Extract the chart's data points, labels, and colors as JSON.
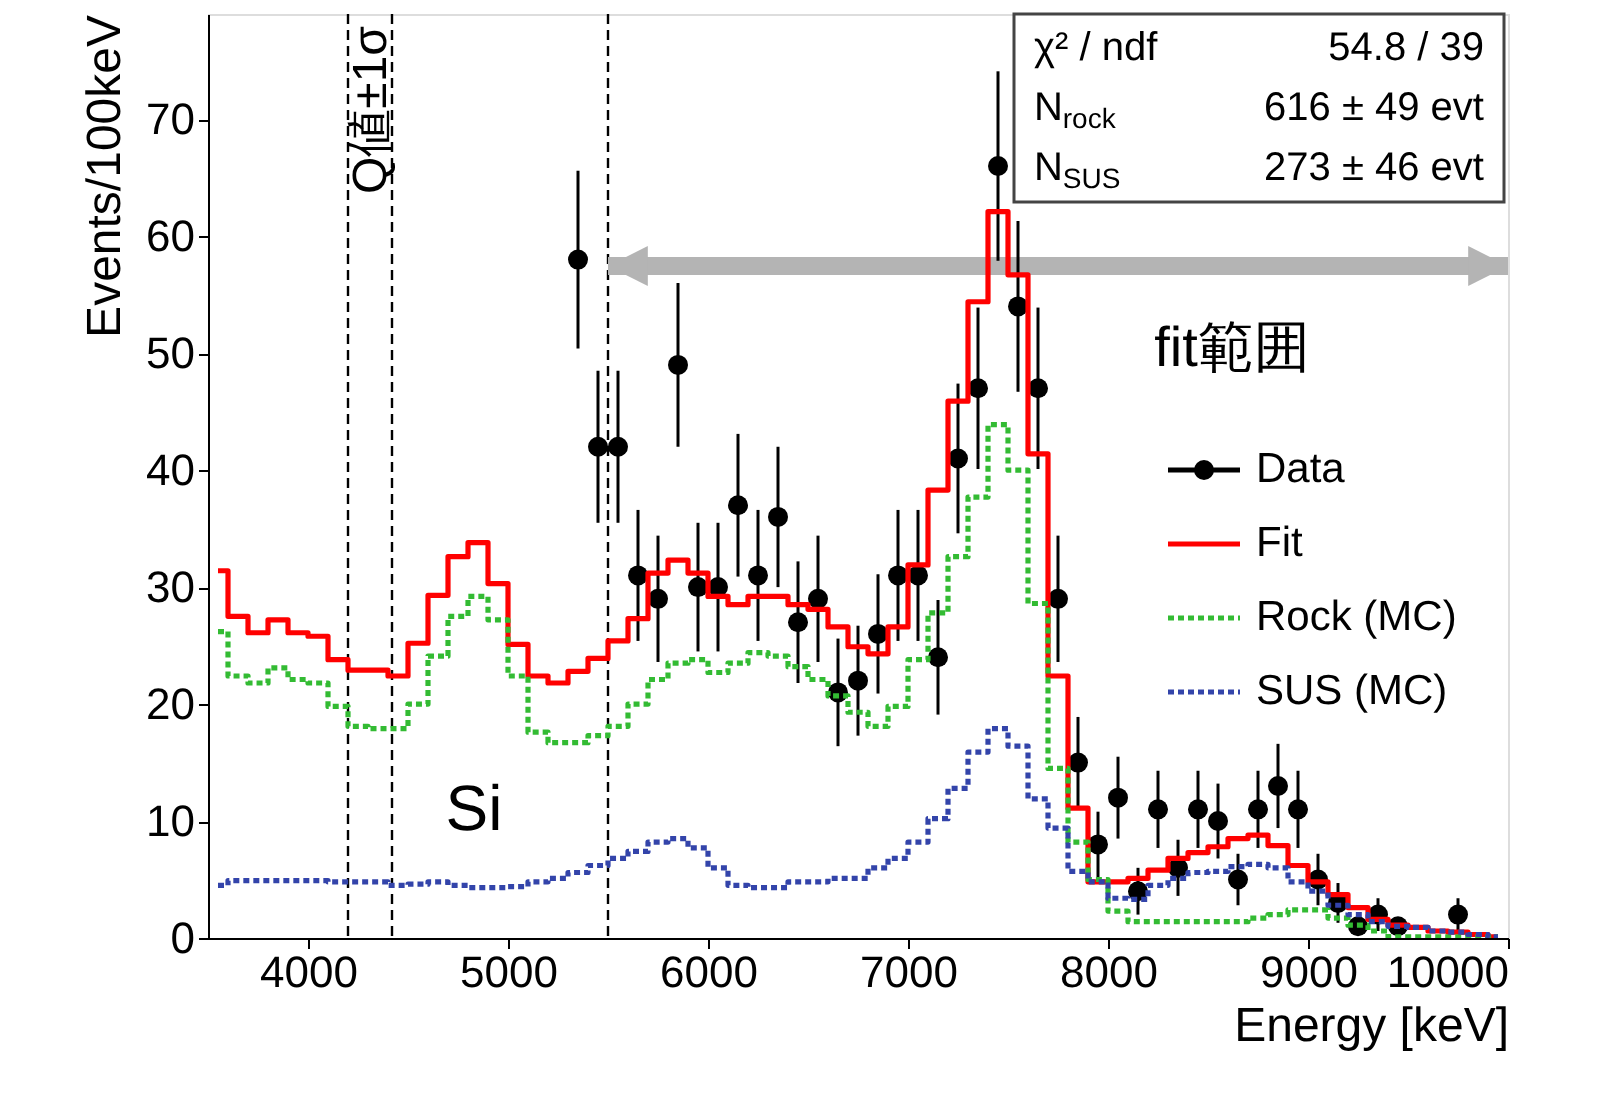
{
  "chart_data": {
    "type": "step",
    "xlabel": "Energy [keV]",
    "ylabel": "Events/100keV",
    "xlim": [
      3500,
      10000
    ],
    "xticks": [
      4000,
      5000,
      6000,
      7000,
      8000,
      9000,
      10000
    ],
    "ylim": [
      0,
      79
    ],
    "yticks": [
      0,
      10,
      20,
      30,
      40,
      50,
      60,
      70
    ],
    "legend": "right",
    "series": [
      {
        "name": "Data",
        "type": "scatter",
        "marker": "circle",
        "color": "#000000",
        "x": [
          5350,
          5450,
          5550,
          5650,
          5750,
          5850,
          5950,
          6050,
          6150,
          6250,
          6350,
          6450,
          6550,
          6650,
          6750,
          6850,
          6950,
          7050,
          7150,
          7250,
          7350,
          7450,
          7550,
          7650,
          7750,
          7850,
          7950,
          8050,
          8150,
          8250,
          8350,
          8450,
          8550,
          8650,
          8750,
          8850,
          8950,
          9050,
          9150,
          9250,
          9350,
          9450,
          9750
        ],
        "values": [
          58,
          42,
          42,
          31,
          29,
          49,
          30,
          30,
          37,
          31,
          36,
          27,
          29,
          21,
          22,
          26,
          31,
          31,
          24,
          41,
          47,
          66,
          54,
          47,
          29,
          15,
          8,
          12,
          4,
          11,
          6,
          11,
          10,
          5,
          11,
          13,
          11,
          5,
          3,
          1,
          2,
          1,
          2
        ],
        "errors": [
          7.6,
          6.5,
          6.5,
          5.6,
          5.4,
          7,
          5.5,
          5.5,
          6.1,
          5.6,
          6,
          5.2,
          5.4,
          4.6,
          4.7,
          5.1,
          5.6,
          5.6,
          4.9,
          6.4,
          6.9,
          8.1,
          7.3,
          6.9,
          5.4,
          3.9,
          2.8,
          3.5,
          2,
          3.3,
          2.4,
          3.3,
          3.2,
          2.2,
          3.3,
          3.6,
          3.3,
          2.2,
          1.7,
          null,
          1.4,
          null,
          1.4
        ]
      },
      {
        "name": "Fit",
        "line_style": "solid",
        "color": "#ff0000",
        "x": [
          3550,
          3650,
          3750,
          3850,
          3950,
          4050,
          4150,
          4250,
          4350,
          4450,
          4550,
          4650,
          4750,
          4850,
          4950,
          5050,
          5150,
          5250,
          5350,
          5450,
          5550,
          5650,
          5750,
          5850,
          5950,
          6050,
          6150,
          6250,
          6350,
          6450,
          6550,
          6650,
          6750,
          6850,
          6950,
          7050,
          7150,
          7250,
          7350,
          7450,
          7550,
          7650,
          7750,
          7850,
          7950,
          8050,
          8150,
          8250,
          8350,
          8450,
          8550,
          8650,
          8750,
          8850,
          8950,
          9050,
          9150,
          9250,
          9350,
          9450,
          9550,
          9650,
          9750,
          9850,
          9950
        ],
        "values": [
          31.4,
          27.5,
          26.1,
          27.2,
          26.1,
          25.8,
          23.8,
          22.9,
          22.9,
          22.4,
          25.2,
          29.3,
          32.6,
          33.8,
          30.3,
          25.1,
          22.4,
          21.8,
          22.8,
          23.9,
          25.4,
          27.3,
          31.2,
          32.3,
          31.2,
          29.2,
          28.5,
          29.2,
          29.2,
          28.5,
          28.1,
          26.6,
          24.9,
          24.3,
          26.6,
          31.9,
          38.3,
          45.9,
          54.4,
          62.1,
          56.7,
          41.4,
          22.4,
          11.1,
          4.8,
          4.8,
          5.1,
          5.8,
          6.8,
          7.3,
          7.8,
          8.5,
          8.8,
          7.9,
          6.2,
          4.8,
          3.7,
          2.6,
          1.6,
          1.1,
          0.9,
          0.6,
          0.5,
          0.3,
          0.1
        ]
      },
      {
        "name": "Rock (MC)",
        "line_style": "dotted",
        "color": "#33bb33",
        "x": [
          3550,
          3650,
          3750,
          3850,
          3950,
          4050,
          4150,
          4250,
          4350,
          4450,
          4550,
          4650,
          4750,
          4850,
          4950,
          5050,
          5150,
          5250,
          5350,
          5450,
          5550,
          5650,
          5750,
          5850,
          5950,
          6050,
          6150,
          6250,
          6350,
          6450,
          6550,
          6650,
          6750,
          6850,
          6950,
          7050,
          7150,
          7250,
          7350,
          7450,
          7550,
          7650,
          7750,
          7850,
          7950,
          8050,
          8150,
          8250,
          8350,
          8450,
          8550,
          8650,
          8750,
          8850,
          8950,
          9050,
          9150,
          9250,
          9350,
          9450,
          9550,
          9650,
          9750,
          9850,
          9950
        ],
        "values": [
          26.2,
          22.4,
          21.8,
          23.1,
          22.1,
          21.8,
          19.8,
          18.1,
          17.9,
          17.9,
          20.0,
          24.1,
          27.5,
          29.2,
          27.2,
          22.4,
          17.6,
          16.7,
          16.7,
          17.3,
          18.1,
          20.0,
          22.1,
          23.5,
          23.8,
          22.7,
          23.5,
          24.4,
          24.1,
          23.2,
          22.1,
          20.7,
          19.3,
          18.1,
          19.8,
          23.8,
          27.8,
          32.6,
          37.7,
          43.9,
          40.0,
          28.6,
          14.5,
          8.2,
          5.0,
          2.3,
          1.4,
          1.4,
          1.4,
          1.4,
          1.4,
          1.4,
          1.7,
          2.0,
          2.4,
          2.4,
          1.7,
          1.1,
          0.6,
          0.1,
          0.1,
          0.1,
          0.1,
          0.1,
          0.1
        ]
      },
      {
        "name": "SUS (MC)",
        "line_style": "dotted",
        "color": "#3344aa",
        "x": [
          3550,
          3650,
          3750,
          3850,
          3950,
          4050,
          4150,
          4250,
          4350,
          4450,
          4550,
          4650,
          4750,
          4850,
          4950,
          5050,
          5150,
          5250,
          5350,
          5450,
          5550,
          5650,
          5750,
          5850,
          5950,
          6050,
          6150,
          6250,
          6350,
          6450,
          6550,
          6650,
          6750,
          6850,
          6950,
          7050,
          7150,
          7250,
          7350,
          7450,
          7550,
          7650,
          7750,
          7850,
          7950,
          8050,
          8150,
          8250,
          8350,
          8450,
          8550,
          8650,
          8750,
          8850,
          8950,
          9050,
          9150,
          9250,
          9350,
          9450,
          9550,
          9650,
          9750,
          9850,
          9950
        ],
        "values": [
          4.5,
          4.9,
          4.9,
          4.9,
          4.9,
          4.9,
          4.8,
          4.8,
          4.8,
          4.5,
          4.6,
          4.8,
          4.5,
          4.3,
          4.3,
          4.4,
          4.8,
          5.1,
          5.6,
          6.2,
          6.8,
          7.4,
          8.2,
          8.5,
          7.7,
          6.0,
          4.5,
          4.3,
          4.3,
          4.8,
          4.8,
          5.1,
          5.1,
          6.0,
          6.8,
          8.2,
          10.2,
          12.8,
          15.9,
          17.9,
          16.4,
          11.9,
          9.4,
          5.7,
          4.8,
          3.4,
          3.3,
          4.5,
          5.1,
          5.6,
          5.7,
          6.1,
          6.3,
          6.0,
          4.8,
          4.0,
          2.8,
          2.0,
          1.4,
          1.0,
          0.9,
          0.6,
          0.5,
          0.3,
          0.1
        ]
      }
    ],
    "ref_lines": [
      {
        "axis": "x",
        "value": 4200,
        "line_style": "dashed",
        "color": "#000000"
      },
      {
        "axis": "x",
        "value": 4420,
        "line_style": "dashed",
        "color": "#000000"
      },
      {
        "axis": "x",
        "value": 5500,
        "line_style": "dashed",
        "color": "#000000"
      }
    ],
    "annotations": [
      "χ² / ndf",
      "54.8 / 39",
      "N$_{rock}$",
      "616 ± 49 evt",
      "N$_{SUS}$",
      "273 ± 46 evt",
      "Si",
      "Q値±1σ",
      "fit範囲"
    ]
  }
}
